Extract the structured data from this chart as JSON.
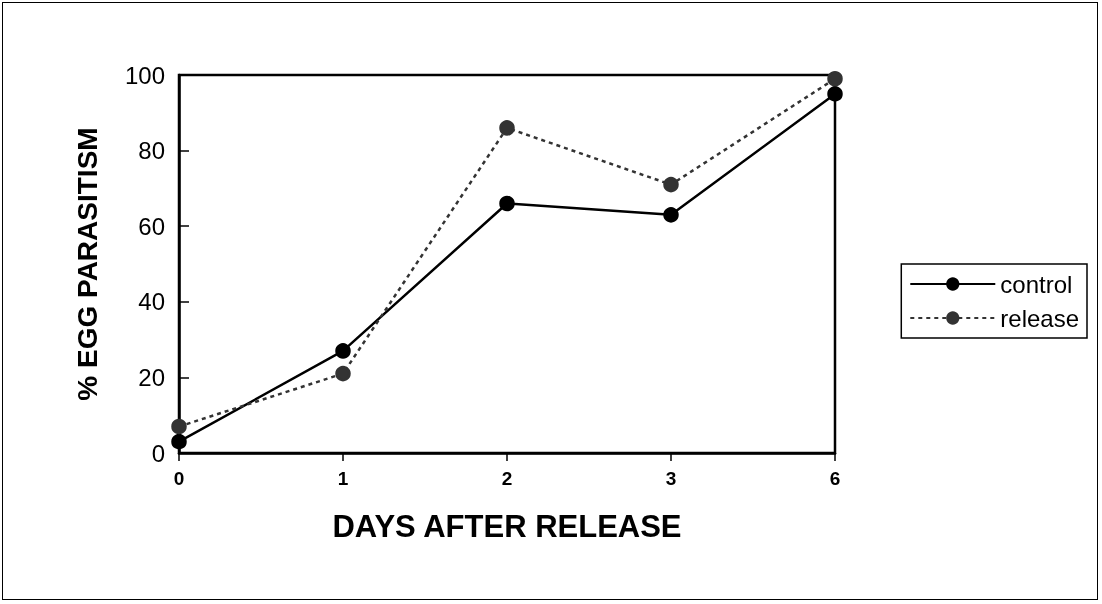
{
  "chart_data": {
    "type": "line",
    "xlabel": "DAYS AFTER RELEASE",
    "ylabel": "% EGG PARASITISM",
    "categories": [
      "0",
      "1",
      "2",
      "3",
      "6"
    ],
    "series": [
      {
        "name": "control",
        "color": "#000000",
        "values": [
          3,
          27,
          66,
          63,
          95
        ],
        "line_style": "solid",
        "marker": "circle"
      },
      {
        "name": "release",
        "color": "#333333",
        "values": [
          7,
          21,
          86,
          71,
          99
        ],
        "line_style": "dashed",
        "marker": "circle"
      }
    ],
    "ylim": [
      0,
      100
    ],
    "yticks": [
      0,
      20,
      40,
      60,
      80,
      100
    ],
    "grid": false,
    "legend": "right"
  }
}
